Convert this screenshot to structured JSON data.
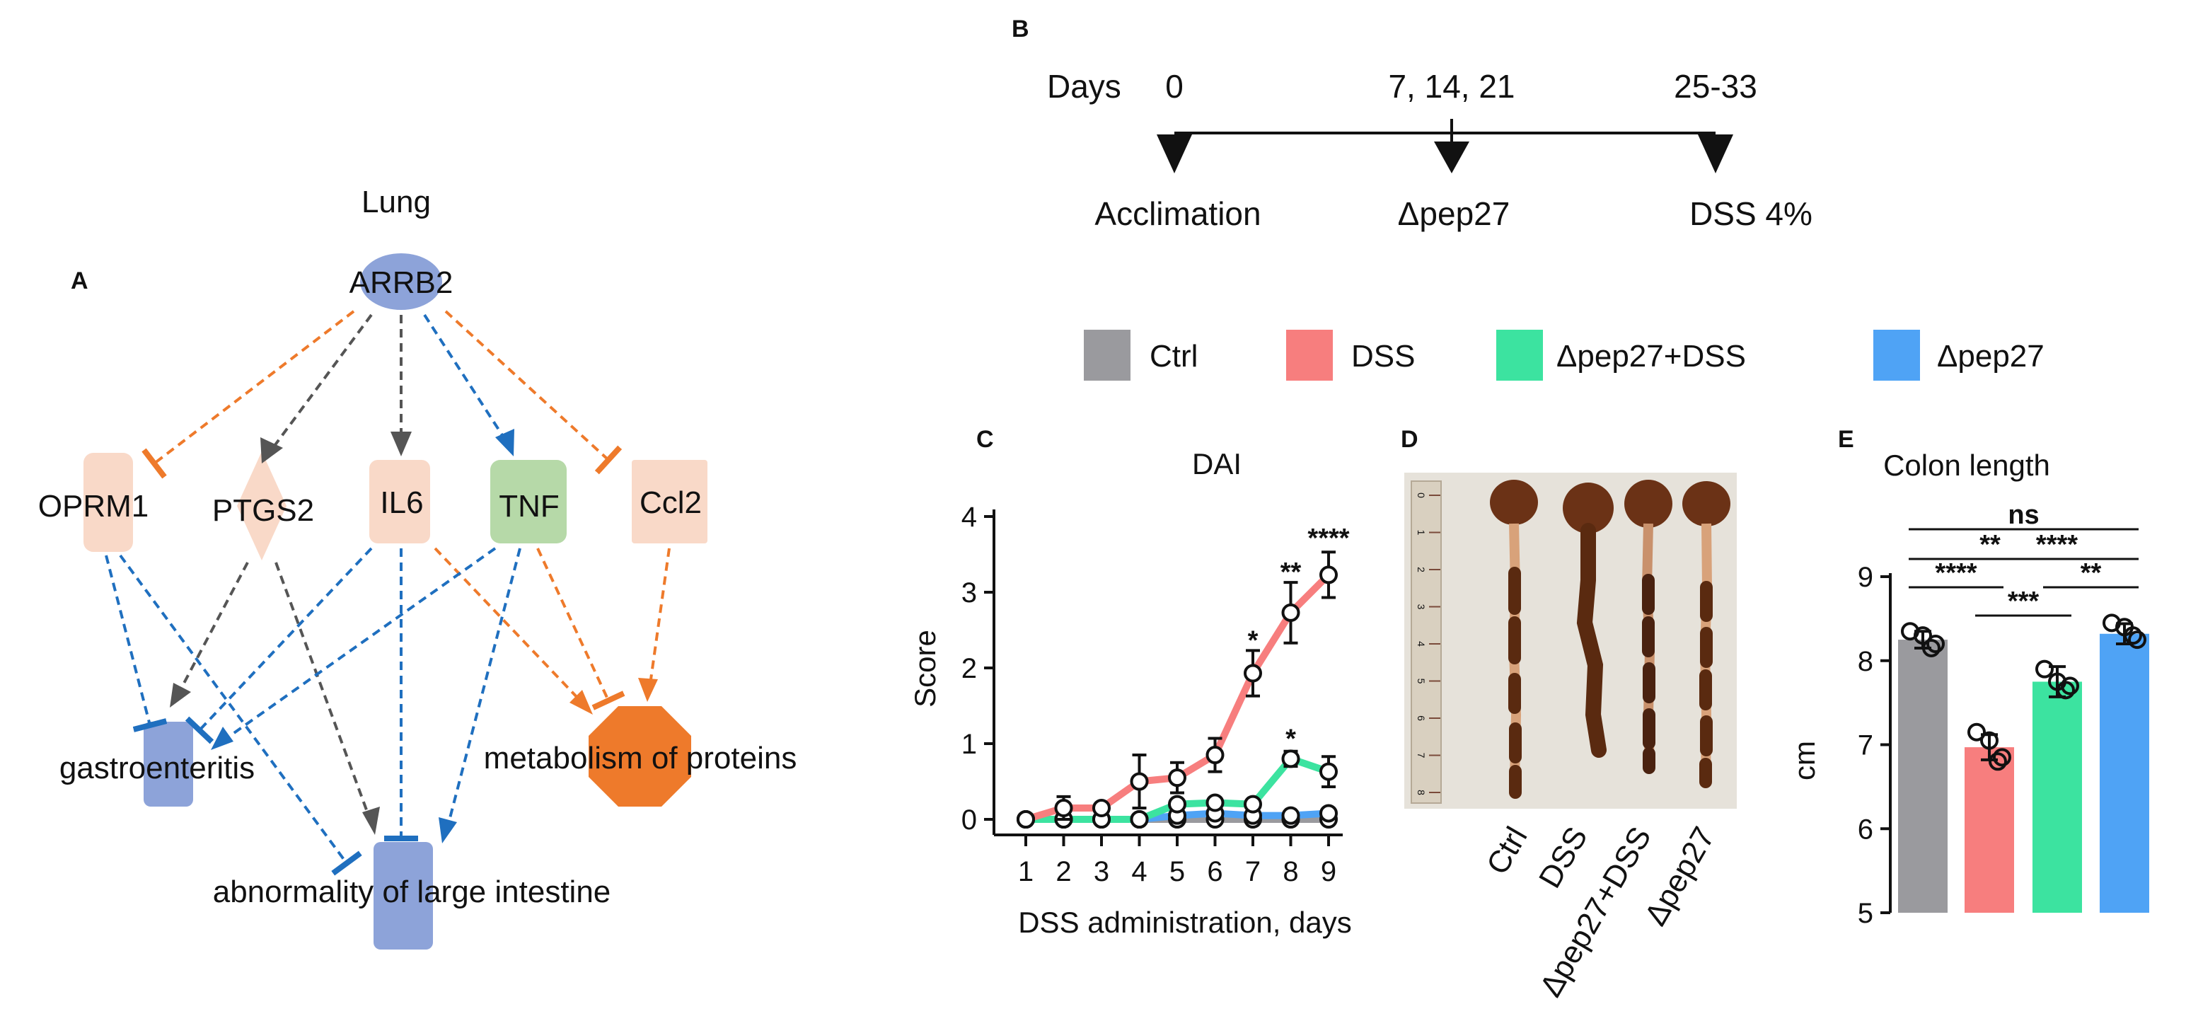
{
  "panels": {
    "A": "A",
    "B": "B",
    "C": "C",
    "D": "D",
    "E": "E"
  },
  "network": {
    "title": "Lung",
    "nodes": {
      "ARRB2": "ARRB2",
      "OPRM1": "OPRM1",
      "PTGS2": "PTGS2",
      "IL6": "IL6",
      "TNF": "TNF",
      "Ccl2": "Ccl2",
      "gastro": "gastroenteritis",
      "abnorm": "abnormality of large intestine",
      "metab": "metabolism of proteins"
    },
    "colors": {
      "orange": "#EE7A2B",
      "grey": "#555555",
      "blue": "#1F6FBF",
      "peach": "#F9D9C8",
      "green": "#B6D9A8",
      "lavender": "#8DA3D9"
    }
  },
  "timeline": {
    "days_label": "Days",
    "marks": [
      "0",
      "7, 14, 21",
      "25-33"
    ],
    "events": [
      "Acclimation",
      "Δpep27",
      "DSS 4%"
    ]
  },
  "legend": [
    {
      "label": "Ctrl",
      "color": "#9A9A9E"
    },
    {
      "label": "DSS",
      "color": "#F77E7E"
    },
    {
      "label": "Δpep27+DSS",
      "color": "#3CE3A0"
    },
    {
      "label": "Δpep27",
      "color": "#4FA3F5"
    }
  ],
  "photo": {
    "labels": [
      "Ctrl",
      "DSS",
      "Δpep27+DSS",
      "Δpep27"
    ],
    "ruler_ticks": [
      "0",
      "1",
      "2",
      "3",
      "4",
      "5",
      "6",
      "7",
      "8"
    ]
  },
  "chart_data": [
    {
      "type": "line",
      "title": "DAI",
      "xlabel": "DSS administration, days",
      "ylabel": "Score",
      "x": [
        1,
        2,
        3,
        4,
        5,
        6,
        7,
        8,
        9
      ],
      "ylim": [
        0,
        4
      ],
      "yticks": [
        0,
        1,
        2,
        3,
        4
      ],
      "series": [
        {
          "name": "Ctrl",
          "color": "#9A9A9E",
          "values": [
            0,
            0,
            0,
            0,
            0,
            0,
            0,
            0,
            0
          ],
          "err": [
            0,
            0,
            0,
            0,
            0,
            0,
            0,
            0,
            0
          ]
        },
        {
          "name": "Δpep27",
          "color": "#4FA3F5",
          "values": [
            0,
            0,
            0,
            0,
            0.05,
            0.08,
            0.05,
            0.05,
            0.08
          ],
          "err": [
            0,
            0,
            0,
            0,
            0,
            0,
            0,
            0,
            0
          ]
        },
        {
          "name": "Δpep27+DSS",
          "color": "#3CE3A0",
          "values": [
            0,
            0,
            0,
            0,
            0.2,
            0.22,
            0.2,
            0.8,
            0.63
          ],
          "err": [
            0,
            0,
            0,
            0,
            0,
            0,
            0,
            0.1,
            0.2
          ]
        },
        {
          "name": "DSS",
          "color": "#F77E7E",
          "values": [
            0,
            0.15,
            0.15,
            0.5,
            0.55,
            0.85,
            1.93,
            2.73,
            3.23
          ],
          "err": [
            0,
            0.15,
            0,
            0.35,
            0.2,
            0.22,
            0.3,
            0.4,
            0.3
          ]
        }
      ],
      "significance": [
        {
          "x": 7,
          "y": 2.25,
          "text": "*"
        },
        {
          "x": 8,
          "y": 3.15,
          "text": "**"
        },
        {
          "x": 9,
          "y": 3.6,
          "text": "****"
        },
        {
          "x": 8,
          "y": 0.95,
          "text": "*"
        }
      ]
    },
    {
      "type": "bar",
      "title": "Colon length",
      "ylabel": "cm",
      "categories": [
        "Ctrl",
        "DSS",
        "Δpep27+DSS",
        "Δpep27"
      ],
      "values": [
        8.25,
        6.97,
        7.75,
        8.32
      ],
      "err": [
        0.1,
        0.15,
        0.18,
        0.12
      ],
      "points": [
        [
          8.35,
          8.2,
          8.3,
          8.15
        ],
        [
          7.15,
          6.85,
          7.05,
          6.8
        ],
        [
          7.9,
          7.7,
          7.75,
          7.65
        ],
        [
          8.45,
          8.25,
          8.4,
          8.3
        ]
      ],
      "colors": [
        "#9A9A9E",
        "#F77E7E",
        "#3CE3A0",
        "#4FA3F5"
      ],
      "ylim": [
        5,
        9
      ],
      "yticks": [
        5,
        6,
        7,
        8,
        9
      ],
      "comparisons": [
        {
          "from": 0,
          "to": 3,
          "label": "ns"
        },
        {
          "from": 0,
          "to": 2,
          "label": "**"
        },
        {
          "from": 0,
          "to": 1,
          "label": "****"
        },
        {
          "from": 1,
          "to": 3,
          "label": "****"
        },
        {
          "from": 2,
          "to": 3,
          "label": "**"
        },
        {
          "from": 1,
          "to": 2,
          "label": "***"
        }
      ]
    }
  ]
}
